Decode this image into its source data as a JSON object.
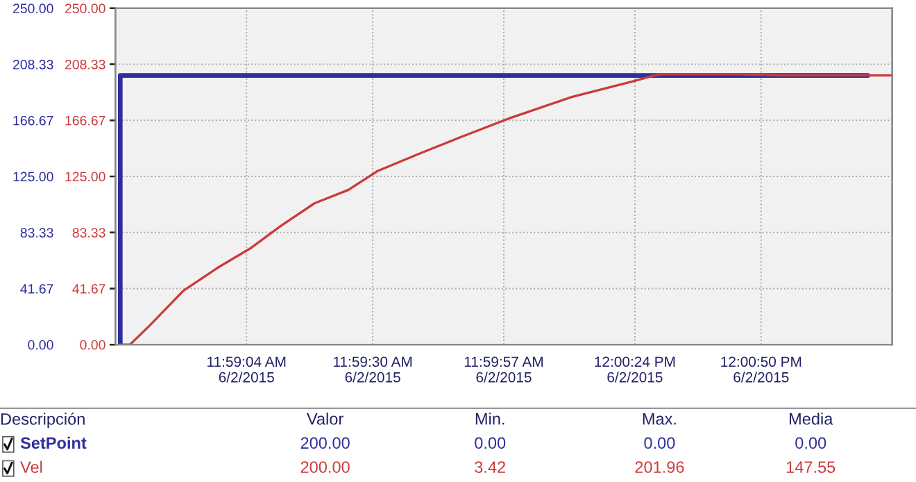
{
  "chart_data": {
    "type": "line",
    "series": [
      {
        "name": "SetPoint",
        "color": "#2e2e9e",
        "x": [
          "2015-06-02T11:58:38",
          "2015-06-02T11:58:38",
          "2015-06-02T12:01:12"
        ],
        "values": [
          0,
          200,
          200
        ]
      },
      {
        "name": "Vel",
        "color": "#cc3b3b",
        "axis": "y2",
        "x": [
          "2015-06-02T11:58:38",
          "2015-06-02T11:58:40",
          "2015-06-02T11:58:44",
          "2015-06-02T11:58:51",
          "2015-06-02T11:58:58",
          "2015-06-02T11:59:05",
          "2015-06-02T11:59:11",
          "2015-06-02T11:59:18",
          "2015-06-02T11:59:25",
          "2015-06-02T11:59:31",
          "2015-06-02T11:59:39",
          "2015-06-02T11:59:48",
          "2015-06-02T11:59:58",
          "2015-06-02T12:00:11",
          "2015-06-02T12:00:24",
          "2015-06-02T12:00:28",
          "2015-06-02T12:00:30",
          "2015-06-02T12:00:45",
          "2015-06-02T12:00:54",
          "2015-06-02T12:01:17"
        ],
        "values": [
          0,
          0,
          14,
          40,
          57,
          72,
          88,
          105,
          115,
          129,
          141,
          154,
          168,
          184,
          196,
          200,
          201,
          201,
          200,
          200
        ]
      }
    ],
    "xlim": [
      "2015-06-02T11:58:37",
      "2015-06-02T12:01:17"
    ],
    "xticks": [
      {
        "value": "2015-06-02T11:59:04",
        "label": "11:59:04 AM\n6/2/2015"
      },
      {
        "value": "2015-06-02T11:59:30",
        "label": "11:59:30 AM\n6/2/2015"
      },
      {
        "value": "2015-06-02T11:59:57",
        "label": "11:59:57 AM\n6/2/2015"
      },
      {
        "value": "2015-06-02T12:00:24",
        "label": "12:00:24 PM\n6/2/2015"
      },
      {
        "value": "2015-06-02T12:00:50",
        "label": "12:00:50 PM\n6/2/2015"
      }
    ],
    "ylim": [
      0,
      250
    ],
    "yticks": [
      {
        "value": 0,
        "label": "0.00"
      },
      {
        "value": 41.67,
        "label": "41.67"
      },
      {
        "value": 83.33,
        "label": "83.33"
      },
      {
        "value": 125,
        "label": "125.00"
      },
      {
        "value": 166.67,
        "label": "166.67"
      },
      {
        "value": 208.33,
        "label": "208.33"
      },
      {
        "value": 250,
        "label": "250.00"
      }
    ],
    "y2lim": [
      0,
      250
    ],
    "y2ticks": [
      {
        "value": 0,
        "label": "0.00"
      },
      {
        "value": 41.67,
        "label": "41.67"
      },
      {
        "value": 83.33,
        "label": "83.33"
      },
      {
        "value": 125,
        "label": "125.00"
      },
      {
        "value": 166.67,
        "label": "166.67"
      },
      {
        "value": 208.33,
        "label": "208.33"
      },
      {
        "value": 250,
        "label": "250.00"
      }
    ],
    "grid": true,
    "legend": "bottom",
    "annotations": [
      "Descripción",
      "Valor",
      "Min.",
      "Max.",
      "Media",
      "200.00",
      "0.00",
      "0.00",
      "0.00",
      "200.00",
      "3.42",
      "201.96",
      "147.55"
    ]
  }
}
